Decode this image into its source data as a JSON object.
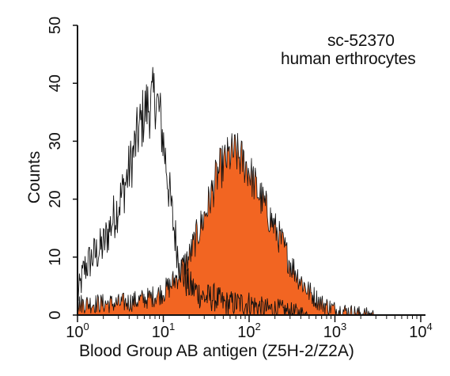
{
  "chart_data": {
    "type": "histogram-overlay",
    "title": "",
    "annotations": [
      "sc-52370",
      "human erthrocytes"
    ],
    "xlabel": "Blood Group AB antigen (Z5H-2/Z2A)",
    "ylabel": "Counts",
    "x_scale": "log",
    "xlim": [
      1,
      10000
    ],
    "ylim": [
      0,
      50
    ],
    "x_ticks": [
      {
        "value": 1,
        "base": "10",
        "exp": "0"
      },
      {
        "value": 10,
        "base": "10",
        "exp": "1"
      },
      {
        "value": 100,
        "base": "10",
        "exp": "2"
      },
      {
        "value": 1000,
        "base": "10",
        "exp": "3"
      },
      {
        "value": 10000,
        "base": "10",
        "exp": "4"
      }
    ],
    "y_ticks": [
      0,
      10,
      20,
      30,
      40,
      50
    ],
    "grid": false,
    "series": [
      {
        "style": "outline",
        "color": "#111111",
        "x": [
          1,
          1.2,
          1.5,
          2,
          2.5,
          3,
          3.5,
          4,
          4.5,
          5,
          5.5,
          6,
          6.5,
          7,
          7.5,
          8,
          9,
          10,
          11,
          12,
          13,
          14,
          15,
          16,
          18,
          20,
          25,
          30,
          40,
          50,
          70,
          100,
          150,
          200,
          300,
          500
        ],
        "values": [
          3,
          8,
          10,
          12,
          16,
          19,
          22,
          25,
          28,
          31,
          33,
          35,
          36,
          36,
          37,
          38,
          35,
          30,
          25,
          20,
          16,
          13,
          10,
          8,
          6,
          5,
          4,
          3,
          3,
          2,
          2,
          2,
          1,
          1,
          0.5,
          0
        ]
      },
      {
        "style": "filled",
        "color": "#f26522",
        "x": [
          1,
          1.5,
          2,
          3,
          5,
          7,
          10,
          12,
          15,
          18,
          20,
          25,
          30,
          35,
          40,
          45,
          50,
          55,
          60,
          65,
          70,
          80,
          90,
          100,
          120,
          150,
          200,
          250,
          300,
          400,
          500,
          700,
          1000,
          2000,
          3000
        ],
        "values": [
          2,
          2,
          2,
          2,
          2.5,
          3,
          4,
          5,
          7,
          9,
          10,
          14,
          17,
          20,
          23,
          25,
          26,
          27,
          27.5,
          28,
          28,
          27,
          26,
          25,
          22,
          19,
          15,
          12,
          9,
          6,
          4,
          2,
          1,
          0.3,
          0
        ]
      }
    ]
  }
}
